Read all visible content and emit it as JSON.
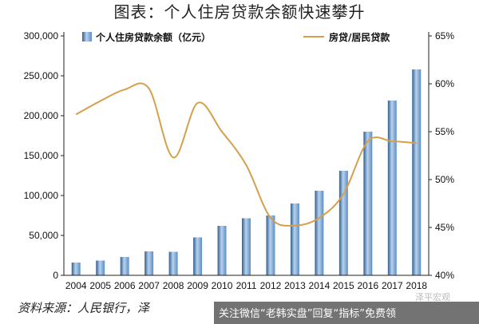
{
  "title": "图表：个人住房贷款余额快速攀升",
  "source": "资料来源：人民银行，泽",
  "watermark": {
    "text": "关注微信“老韩实盘”回复“指标”免费领",
    "faded": "泽平宏观"
  },
  "colors": {
    "bar": "#5b8ec6",
    "bar_dark": "#2f5f93",
    "bar_light": "#b9d2ec",
    "line": "#d4a04c",
    "axis": "#222222"
  },
  "chart_data": {
    "type": "bar",
    "categories": [
      "2004",
      "2005",
      "2006",
      "2007",
      "2008",
      "2009",
      "2010",
      "2011",
      "2012",
      "2013",
      "2014",
      "2015",
      "2016",
      "2017",
      "2018"
    ],
    "series": [
      {
        "name": "个人住房贷款余额（亿元）",
        "type": "bar",
        "axis": "left",
        "values": [
          16000,
          18500,
          23000,
          30000,
          29500,
          47500,
          62000,
          71500,
          75000,
          90000,
          106000,
          131000,
          180000,
          219000,
          258000
        ]
      },
      {
        "name": "房贷/居民贷款",
        "type": "line",
        "axis": "right",
        "values": [
          56.8,
          58.2,
          59.4,
          59.5,
          52.3,
          58.0,
          55.0,
          51.5,
          46.0,
          45.2,
          46.0,
          48.5,
          54.0,
          54.0,
          53.8
        ]
      }
    ],
    "y_left": {
      "min": 0,
      "max": 300000,
      "ticks": [
        "0",
        "50,000",
        "100,000",
        "150,000",
        "200,000",
        "250,000",
        "300,000"
      ]
    },
    "y_right": {
      "min": 40,
      "max": 65,
      "ticks": [
        "40%",
        "45%",
        "50%",
        "55%",
        "60%",
        "65%"
      ]
    },
    "legend": "top"
  }
}
